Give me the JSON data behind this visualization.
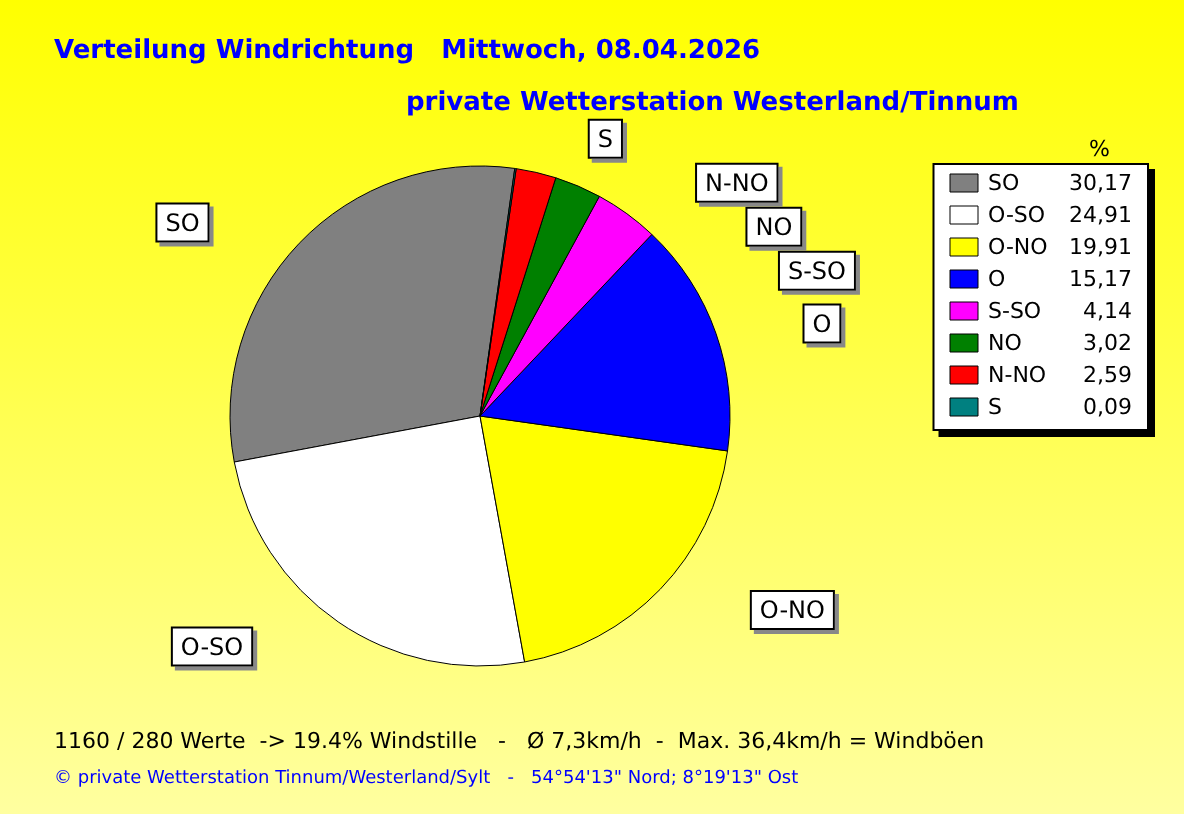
{
  "chart_data": {
    "type": "pie",
    "title": "Verteilung Windrichtung   Mittwoch, 08.04.2026",
    "subtitle": "private Wetterstation Westerland/Tinnum",
    "categories": [
      "SO",
      "O-SO",
      "O-NO",
      "O",
      "S-SO",
      "NO",
      "N-NO",
      "S"
    ],
    "values": [
      30.17,
      24.91,
      19.91,
      15.17,
      4.14,
      3.02,
      2.59,
      0.09
    ],
    "value_labels": [
      "30,17",
      "24,91",
      "19,91",
      "15,17",
      "4,14",
      "3,02",
      "2,59",
      "0,09"
    ],
    "colors": [
      "#808080",
      "#ffffff",
      "#ffff00",
      "#0000ff",
      "#ff00ff",
      "#008000",
      "#ff0000",
      "#008080"
    ],
    "legend": "right",
    "legend_title": "%",
    "annotations": [
      "1160 / 280 Werte  -> 19.4% Windstille   -   Ø 7,3km/h  -  Max. 36,4km/h = Windböen",
      "© private Wetterstation Tinnum/Westerland/Sylt   -   54°54'13\" Nord; 8°19'13\" Ost"
    ]
  }
}
